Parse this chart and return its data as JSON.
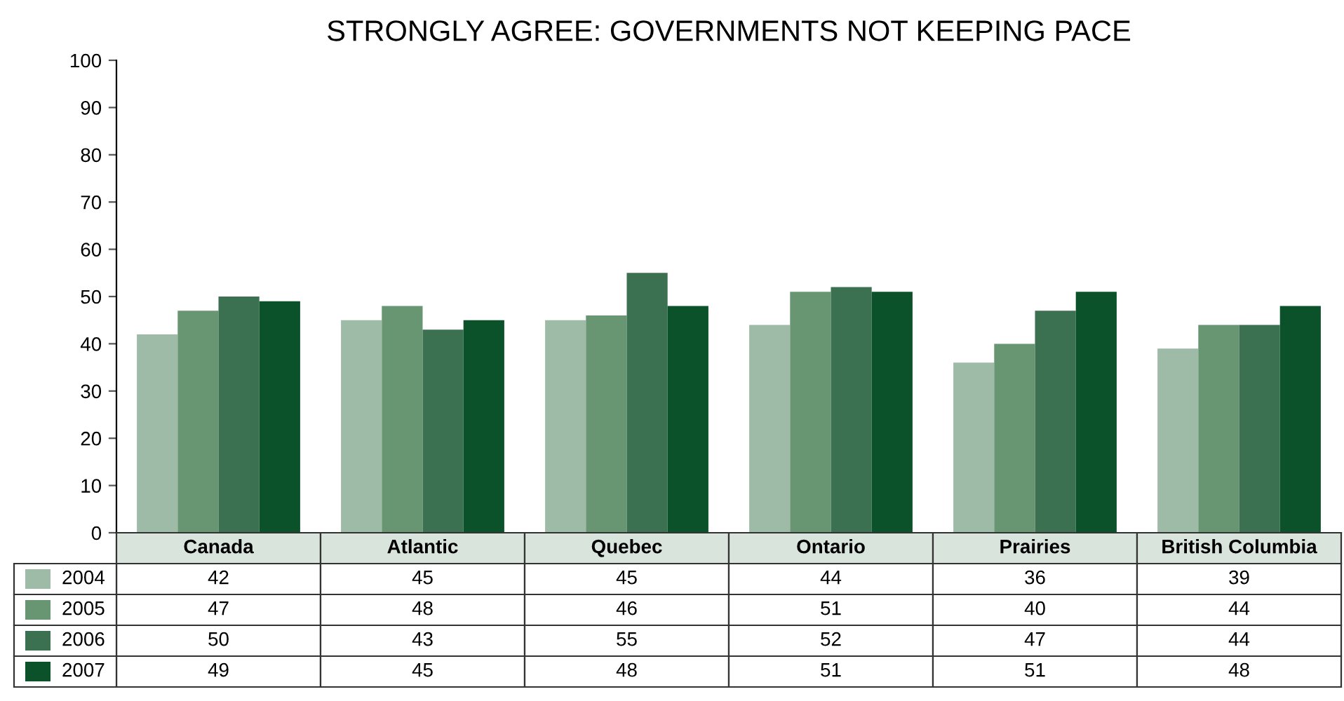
{
  "chart_data": {
    "type": "bar",
    "title": "STRONGLY AGREE: GOVERNMENTS NOT KEEPING PACE",
    "categories": [
      "Canada",
      "Atlantic",
      "Quebec",
      "Ontario",
      "Prairies",
      "British Columbia"
    ],
    "series": [
      {
        "name": "2004",
        "color": "#9dbba6",
        "values": [
          42,
          45,
          45,
          44,
          36,
          39
        ]
      },
      {
        "name": "2005",
        "color": "#689672",
        "values": [
          47,
          48,
          46,
          51,
          40,
          44
        ]
      },
      {
        "name": "2006",
        "color": "#3b7150",
        "values": [
          50,
          43,
          55,
          52,
          47,
          44
        ]
      },
      {
        "name": "2007",
        "color": "#0b5129",
        "values": [
          49,
          45,
          48,
          51,
          51,
          48
        ]
      }
    ],
    "ylim": [
      0,
      100
    ],
    "yticks": [
      0,
      10,
      20,
      30,
      40,
      50,
      60,
      70,
      80,
      90,
      100
    ],
    "grid": false,
    "legend": "bottom",
    "data_labels": true
  }
}
